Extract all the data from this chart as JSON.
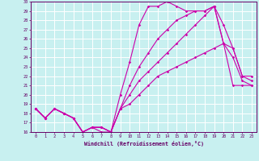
{
  "xlabel": "Windchill (Refroidissement éolien,°C)",
  "bg_color": "#c8f0f0",
  "grid_color": "#ffffff",
  "line_color": "#cc00aa",
  "xlim": [
    -0.5,
    23.5
  ],
  "ylim": [
    16,
    30
  ],
  "yticks": [
    16,
    17,
    18,
    19,
    20,
    21,
    22,
    23,
    24,
    25,
    26,
    27,
    28,
    29,
    30
  ],
  "xticks": [
    0,
    1,
    2,
    3,
    4,
    5,
    6,
    7,
    8,
    9,
    10,
    11,
    12,
    13,
    14,
    15,
    16,
    17,
    18,
    19,
    20,
    21,
    22,
    23
  ],
  "line1_x": [
    0,
    1,
    2,
    3,
    4,
    5,
    6,
    7,
    8,
    9,
    10,
    11,
    12,
    13,
    14,
    15,
    16,
    17,
    18,
    19,
    20,
    21,
    22,
    23
  ],
  "line1_y": [
    18.5,
    17.5,
    18.5,
    18.0,
    17.5,
    16.0,
    16.5,
    16.0,
    16.0,
    20.0,
    23.5,
    27.5,
    29.5,
    29.5,
    30.0,
    29.5,
    29.0,
    29.0,
    29.0,
    29.5,
    27.5,
    25.0,
    22.0,
    22.0
  ],
  "line2_x": [
    0,
    1,
    2,
    3,
    4,
    5,
    6,
    7,
    8,
    9,
    10,
    11,
    12,
    13,
    14,
    15,
    16,
    17,
    18,
    19,
    20,
    21,
    22,
    23
  ],
  "line2_y": [
    18.5,
    17.5,
    18.5,
    18.0,
    17.5,
    16.0,
    16.5,
    16.5,
    16.0,
    18.5,
    21.0,
    23.0,
    24.5,
    26.0,
    27.0,
    28.0,
    28.5,
    29.0,
    29.0,
    29.5,
    25.5,
    25.0,
    22.0,
    21.5
  ],
  "line3_x": [
    0,
    1,
    2,
    3,
    4,
    5,
    6,
    7,
    8,
    9,
    10,
    11,
    12,
    13,
    14,
    15,
    16,
    17,
    18,
    19,
    20,
    21,
    22,
    23
  ],
  "line3_y": [
    18.5,
    17.5,
    18.5,
    18.0,
    17.5,
    16.0,
    16.5,
    16.5,
    16.0,
    18.5,
    20.0,
    21.5,
    22.5,
    23.5,
    24.5,
    25.5,
    26.5,
    27.5,
    28.5,
    29.5,
    25.5,
    24.0,
    21.5,
    21.0
  ],
  "line4_x": [
    0,
    1,
    2,
    3,
    4,
    5,
    6,
    7,
    8,
    9,
    10,
    11,
    12,
    13,
    14,
    15,
    16,
    17,
    18,
    19,
    20,
    21,
    22,
    23
  ],
  "line4_y": [
    18.5,
    17.5,
    18.5,
    18.0,
    17.5,
    16.0,
    16.5,
    16.5,
    16.0,
    18.5,
    19.0,
    20.0,
    21.0,
    22.0,
    22.5,
    23.0,
    23.5,
    24.0,
    24.5,
    25.0,
    25.5,
    21.0,
    21.0,
    21.0
  ]
}
